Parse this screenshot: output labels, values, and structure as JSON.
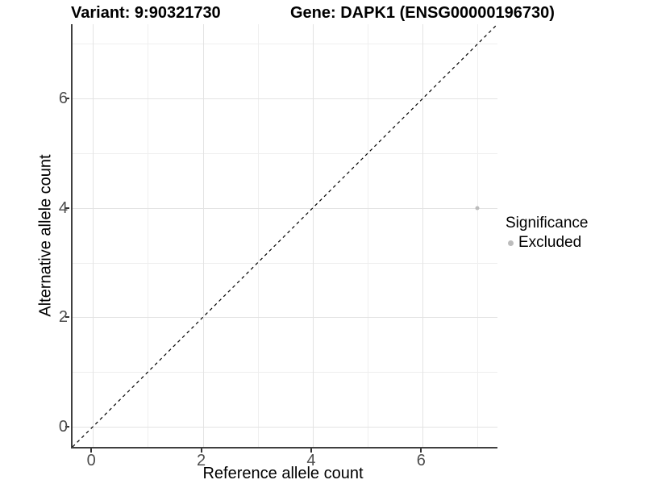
{
  "header": {
    "title_left": "Variant: 9:90321730",
    "title_right": "Gene: DAPK1 (ENSG00000196730)"
  },
  "chart_data": {
    "type": "scatter",
    "title": "Variant: 9:90321730    Gene: DAPK1 (ENSG00000196730)",
    "xlabel": "Reference allele count",
    "ylabel": "Alternative allele count",
    "xlim": [
      -0.37,
      7.36
    ],
    "ylim": [
      -0.37,
      7.36
    ],
    "x_major_ticks": [
      0,
      2,
      4,
      6
    ],
    "y_major_ticks": [
      0,
      2,
      4,
      6
    ],
    "x_minor_gridlines": [
      1,
      3,
      5,
      7
    ],
    "y_minor_gridlines": [
      1,
      3,
      5,
      7
    ],
    "grid": true,
    "series": [
      {
        "name": "Excluded",
        "color": "#bcbcbc",
        "points": [
          {
            "x": 7,
            "y": 4
          }
        ]
      }
    ],
    "reference_line": {
      "kind": "abline",
      "slope": 1,
      "intercept": 0,
      "linetype": "dashed",
      "color": "#000000"
    },
    "legend": {
      "title": "Significance",
      "position": "right",
      "entries": [
        {
          "label": "Excluded",
          "color": "#bcbcbc",
          "marker": "circle"
        }
      ]
    }
  },
  "style_colors": {
    "axis_line": "#404040",
    "tick_label": "#4d4d4d",
    "grid_major": "#e3e3e3",
    "grid_minor": "#efefef"
  }
}
